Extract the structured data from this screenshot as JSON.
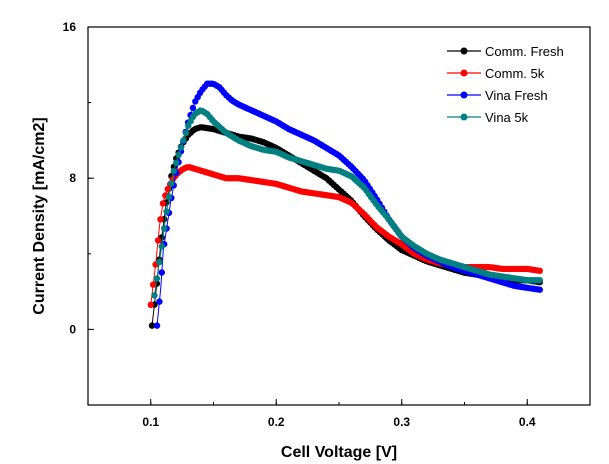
{
  "chart_data": {
    "type": "line",
    "title": "",
    "xlabel": "Cell Voltage [V]",
    "ylabel": "Current Density [mA/cm2]",
    "xlim": [
      0.05,
      0.45
    ],
    "ylim": [
      -4,
      16
    ],
    "x_ticks": [
      0.1,
      0.2,
      0.3,
      0.4
    ],
    "x_tick_labels": [
      "0.1",
      "0.2",
      "0.3",
      "0.4"
    ],
    "y_ticks": [
      0,
      8,
      16
    ],
    "y_tick_labels": [
      "0",
      "8",
      "16"
    ],
    "legend_position": "top-right",
    "series": [
      {
        "name": "Comm. Fresh",
        "color": "#000000",
        "x": [
          0.101,
          0.105,
          0.108,
          0.112,
          0.116,
          0.12,
          0.125,
          0.13,
          0.135,
          0.14,
          0.15,
          0.16,
          0.17,
          0.18,
          0.19,
          0.2,
          0.21,
          0.22,
          0.23,
          0.24,
          0.25,
          0.26,
          0.27,
          0.28,
          0.29,
          0.3,
          0.31,
          0.32,
          0.33,
          0.34,
          0.35,
          0.36,
          0.37,
          0.38,
          0.39,
          0.4,
          0.41
        ],
        "y": [
          0.2,
          2.5,
          4.5,
          6.5,
          8.0,
          9.0,
          9.8,
          10.3,
          10.6,
          10.7,
          10.6,
          10.4,
          10.2,
          10.1,
          9.9,
          9.6,
          9.2,
          8.8,
          8.4,
          8.0,
          7.4,
          6.8,
          6.0,
          5.3,
          4.7,
          4.2,
          3.9,
          3.6,
          3.4,
          3.2,
          3.0,
          2.9,
          2.8,
          2.7,
          2.6,
          2.6,
          2.5
        ]
      },
      {
        "name": "Comm. 5k",
        "color": "#ff0000",
        "x": [
          0.1,
          0.104,
          0.107,
          0.11,
          0.114,
          0.118,
          0.122,
          0.126,
          0.13,
          0.135,
          0.14,
          0.15,
          0.16,
          0.17,
          0.18,
          0.19,
          0.2,
          0.21,
          0.22,
          0.23,
          0.24,
          0.25,
          0.26,
          0.27,
          0.28,
          0.29,
          0.3,
          0.31,
          0.32,
          0.33,
          0.34,
          0.35,
          0.36,
          0.37,
          0.38,
          0.39,
          0.4,
          0.41
        ],
        "y": [
          1.3,
          3.5,
          5.5,
          6.8,
          7.5,
          8.0,
          8.3,
          8.5,
          8.6,
          8.5,
          8.4,
          8.2,
          8.0,
          8.0,
          7.9,
          7.8,
          7.7,
          7.5,
          7.3,
          7.2,
          7.1,
          7.0,
          6.7,
          6.1,
          5.4,
          4.9,
          4.5,
          4.0,
          3.7,
          3.5,
          3.4,
          3.3,
          3.3,
          3.3,
          3.2,
          3.2,
          3.2,
          3.1
        ]
      },
      {
        "name": "Vina Fresh",
        "color": "#0000ff",
        "x": [
          0.105,
          0.108,
          0.11,
          0.113,
          0.116,
          0.12,
          0.125,
          0.13,
          0.135,
          0.14,
          0.145,
          0.15,
          0.155,
          0.16,
          0.165,
          0.17,
          0.18,
          0.19,
          0.2,
          0.21,
          0.22,
          0.23,
          0.24,
          0.25,
          0.26,
          0.27,
          0.28,
          0.29,
          0.3,
          0.31,
          0.32,
          0.33,
          0.34,
          0.35,
          0.36,
          0.37,
          0.38,
          0.39,
          0.4,
          0.41
        ],
        "y": [
          0.2,
          2.2,
          4.2,
          5.5,
          6.8,
          8.2,
          9.7,
          11.0,
          12.0,
          12.6,
          13.0,
          13.0,
          12.8,
          12.4,
          12.1,
          11.9,
          11.6,
          11.3,
          11.0,
          10.6,
          10.3,
          10.0,
          9.6,
          9.2,
          8.6,
          7.9,
          6.9,
          5.8,
          4.9,
          4.3,
          3.9,
          3.6,
          3.3,
          3.1,
          2.9,
          2.7,
          2.5,
          2.3,
          2.2,
          2.1
        ]
      },
      {
        "name": "Vina 5k",
        "color": "#008080",
        "x": [
          0.103,
          0.106,
          0.109,
          0.112,
          0.115,
          0.118,
          0.122,
          0.126,
          0.13,
          0.135,
          0.14,
          0.145,
          0.15,
          0.16,
          0.17,
          0.18,
          0.19,
          0.2,
          0.21,
          0.22,
          0.23,
          0.24,
          0.25,
          0.26,
          0.27,
          0.28,
          0.29,
          0.3,
          0.31,
          0.32,
          0.33,
          0.34,
          0.35,
          0.36,
          0.37,
          0.38,
          0.39,
          0.4,
          0.41
        ],
        "y": [
          1.8,
          3.2,
          4.5,
          6.0,
          7.2,
          8.3,
          9.2,
          10.0,
          10.8,
          11.4,
          11.6,
          11.4,
          11.0,
          10.4,
          10.0,
          9.7,
          9.5,
          9.4,
          9.1,
          8.9,
          8.7,
          8.5,
          8.4,
          8.1,
          7.5,
          6.6,
          5.8,
          4.9,
          4.4,
          4.0,
          3.7,
          3.5,
          3.3,
          3.1,
          2.9,
          2.8,
          2.7,
          2.6,
          2.6
        ]
      }
    ]
  }
}
